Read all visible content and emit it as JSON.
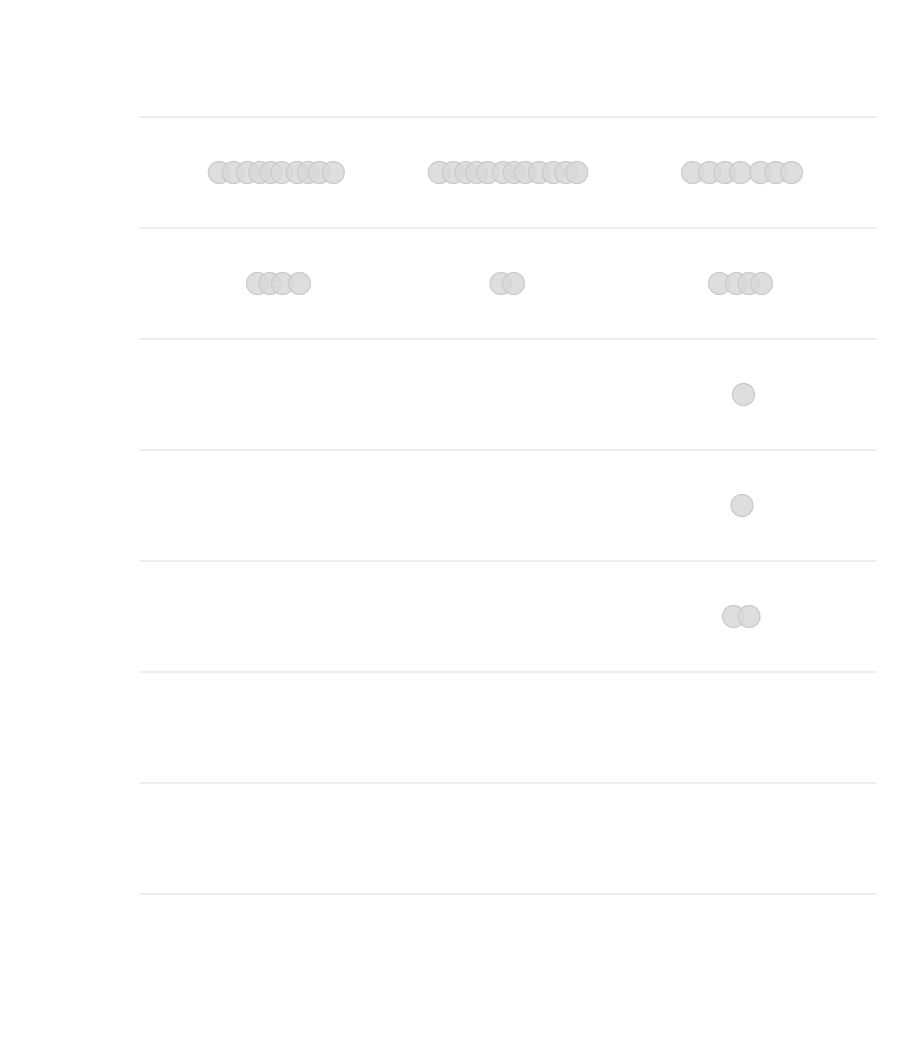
{
  "chart_data": {
    "type": "scatter",
    "title": "",
    "xlabel": "",
    "ylabel": "",
    "rows": 7,
    "columns": 3,
    "grid": "horizontal-rows",
    "colors": {
      "dot_fill": "#d8d8d8",
      "dot_stroke": "#c9c9c9",
      "row_line": "#e3e3e3"
    },
    "cells": [
      {
        "row": 0,
        "column": 0,
        "count": 10
      },
      {
        "row": 0,
        "column": 1,
        "count": 12
      },
      {
        "row": 0,
        "column": 2,
        "count": 7
      },
      {
        "row": 1,
        "column": 0,
        "count": 4
      },
      {
        "row": 1,
        "column": 1,
        "count": 2
      },
      {
        "row": 1,
        "column": 2,
        "count": 4
      },
      {
        "row": 2,
        "column": 2,
        "count": 1
      },
      {
        "row": 3,
        "column": 2,
        "count": 1
      },
      {
        "row": 4,
        "column": 2,
        "count": 2
      }
    ]
  }
}
